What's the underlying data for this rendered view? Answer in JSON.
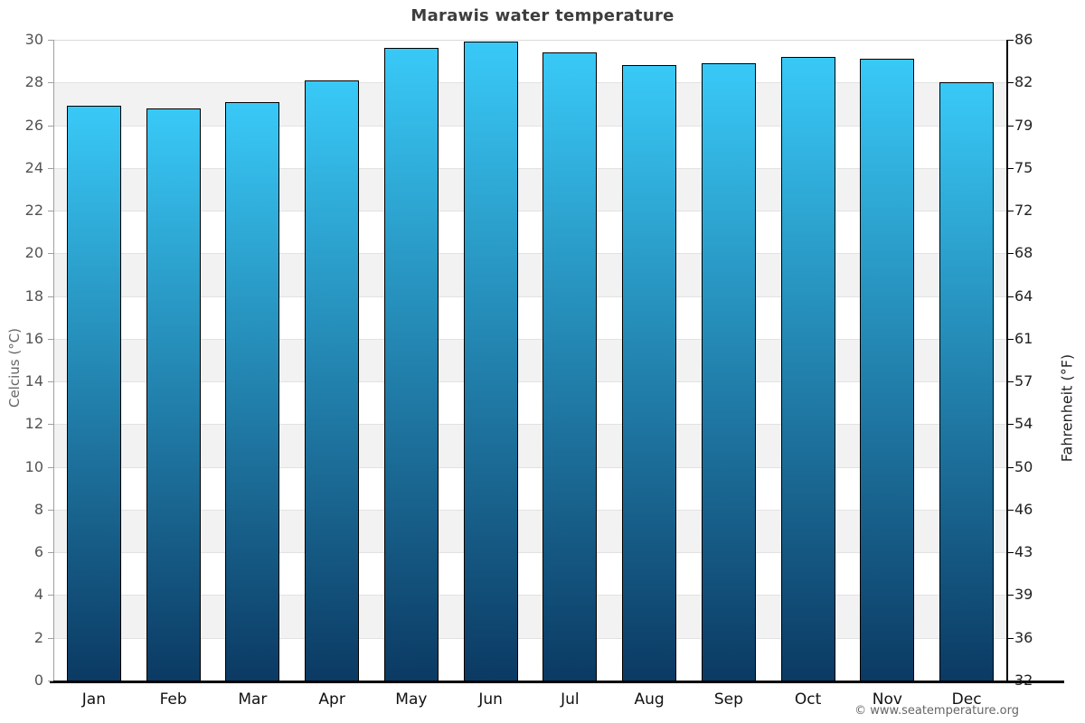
{
  "chart_data": {
    "type": "bar",
    "title": "Marawis water temperature",
    "categories": [
      "Jan",
      "Feb",
      "Mar",
      "Apr",
      "May",
      "Jun",
      "Jul",
      "Aug",
      "Sep",
      "Oct",
      "Nov",
      "Dec"
    ],
    "series": [
      {
        "name": "Water temperature (°C)",
        "values": [
          26.9,
          26.8,
          27.1,
          28.1,
          29.6,
          29.9,
          29.4,
          28.8,
          28.9,
          29.2,
          29.1,
          28.0
        ]
      }
    ],
    "ylabel_left": "Celcius (°C)",
    "ylabel_right": "Fahrenheit (°F)",
    "yticks_celsius": [
      30,
      28,
      26,
      24,
      22,
      20,
      18,
      16,
      14,
      12,
      10,
      8,
      6,
      4,
      2,
      0
    ],
    "yticks_fahrenheit": [
      86,
      82,
      79,
      75,
      72,
      68,
      64,
      61,
      57,
      54,
      50,
      46,
      43,
      39,
      36,
      32
    ],
    "ylim": [
      0,
      30
    ],
    "grid": "horizontal, alternating shaded bands every 2°C",
    "legend": "none",
    "footer": "© www.seatemperature.org",
    "colors": {
      "bar_gradient_top": "#39c9f7",
      "bar_gradient_bottom": "#0b3a63",
      "bar_border": "#000000",
      "band_shade": "#f2f2f2",
      "gridline": "#e2e2e2",
      "plot_top_line": "#d8d8d8",
      "axis_left_line": "#9f9f9f",
      "axis_right_line": "#000000",
      "baseline": "#000000",
      "title_text": "#3d3d3d",
      "tick_text_left": "#545454",
      "tick_text_right": "#222222",
      "month_text": "#111111",
      "footer_text": "#666666"
    }
  }
}
